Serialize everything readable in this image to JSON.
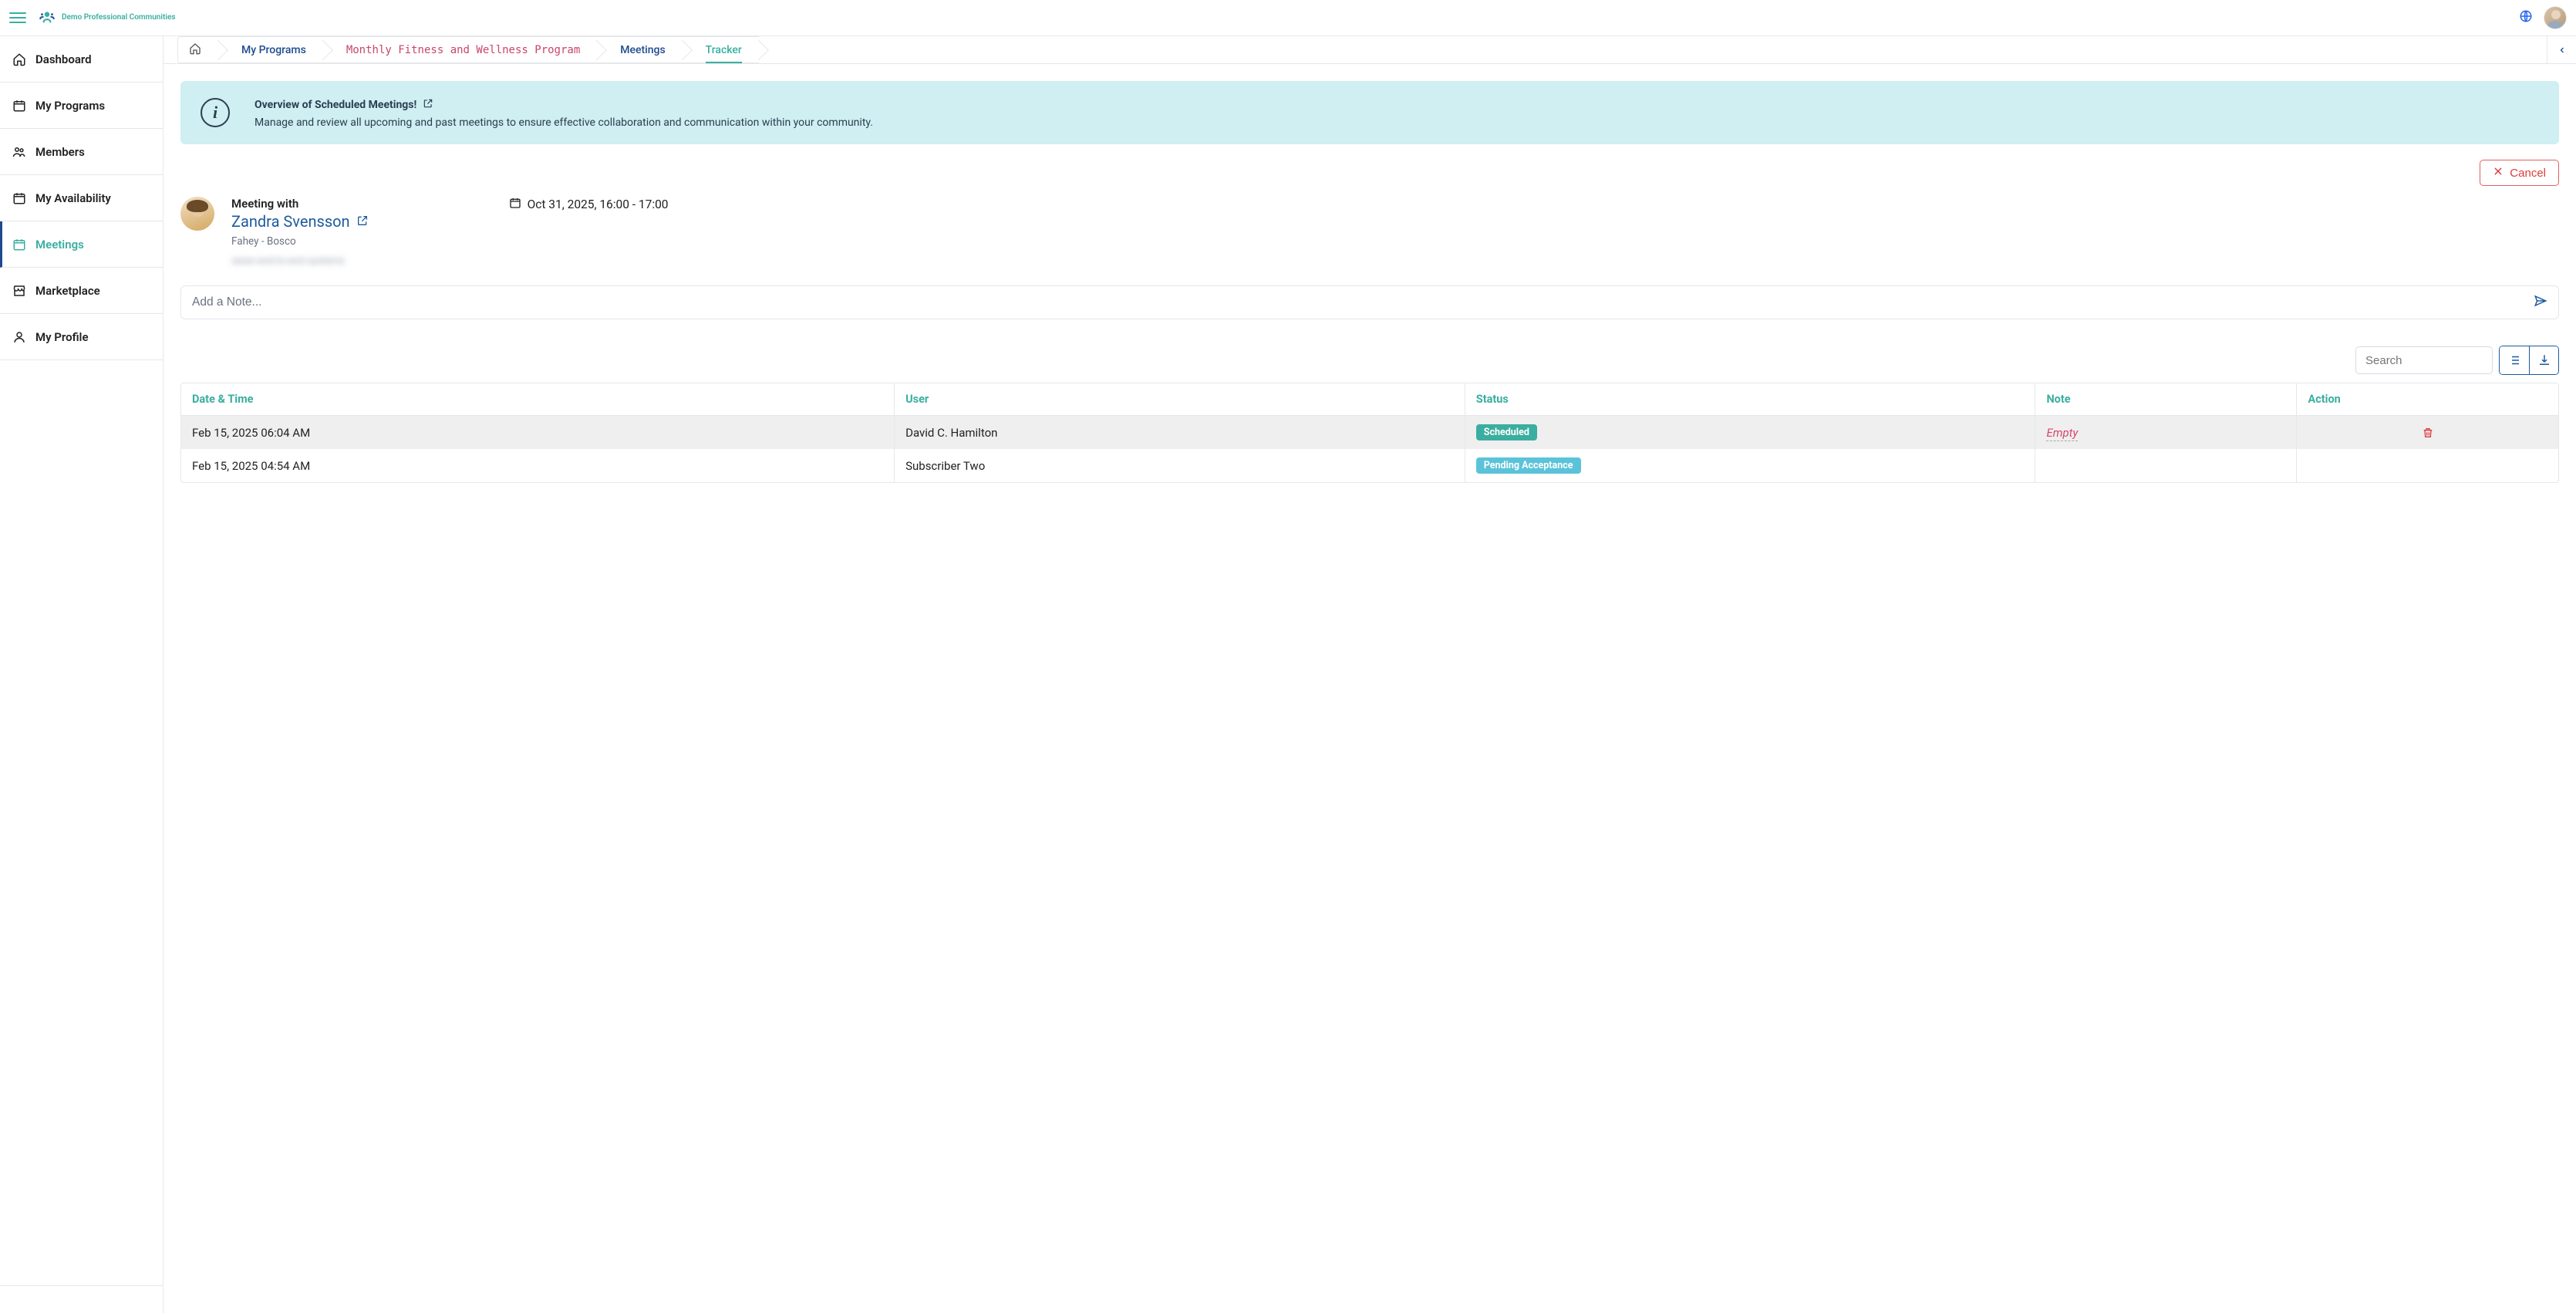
{
  "brand": {
    "name": "Demo Professional Communities"
  },
  "sidebar": {
    "items": [
      {
        "label": "Dashboard",
        "icon": "home"
      },
      {
        "label": "My Programs",
        "icon": "calendar"
      },
      {
        "label": "Members",
        "icon": "users"
      },
      {
        "label": "My Availability",
        "icon": "calendar"
      },
      {
        "label": "Meetings",
        "icon": "calendar",
        "active": true
      },
      {
        "label": "Marketplace",
        "icon": "store"
      },
      {
        "label": "My Profile",
        "icon": "person"
      }
    ]
  },
  "breadcrumbs": {
    "items": [
      {
        "label": "My Programs"
      },
      {
        "label": "Monthly Fitness and Wellness Program",
        "mono": true
      },
      {
        "label": "Meetings"
      },
      {
        "label": "Tracker",
        "current": true
      }
    ]
  },
  "banner": {
    "title": "Overview of Scheduled Meetings!",
    "subtitle": "Manage and review all upcoming and past meetings to ensure effective collaboration and communication within your community."
  },
  "actions": {
    "cancel": "Cancel"
  },
  "meeting": {
    "heading_label": "Meeting with",
    "person_name": "Zandra Svensson",
    "org": "Fahey - Bosco",
    "blurred_line": "seize end-to-end systems",
    "datetime": "Oct 31, 2025, 16:00 - 17:00"
  },
  "note_input": {
    "placeholder": "Add a Note..."
  },
  "search": {
    "placeholder": "Search"
  },
  "table": {
    "columns": {
      "datetime": "Date & Time",
      "user": "User",
      "status": "Status",
      "note": "Note",
      "action": "Action"
    },
    "rows": [
      {
        "datetime": "Feb 15, 2025 06:04 AM",
        "user": "David C. Hamilton",
        "status_label": "Scheduled",
        "status_kind": "scheduled",
        "note": "Empty",
        "note_empty": true,
        "has_delete": true
      },
      {
        "datetime": "Feb 15, 2025 04:54 AM",
        "user": "Subscriber Two",
        "status_label": "Pending Acceptance",
        "status_kind": "pending",
        "note": "",
        "note_empty": false,
        "has_delete": false
      }
    ]
  },
  "colors": {
    "accent_teal": "#3aaea0",
    "link_blue": "#1e5a9e",
    "danger_red": "#dc3b3b",
    "banner_bg": "#cfeff2",
    "border": "#e5e7eb",
    "mono_pink": "#c9456c",
    "badge_pending": "#5bc3d9"
  }
}
